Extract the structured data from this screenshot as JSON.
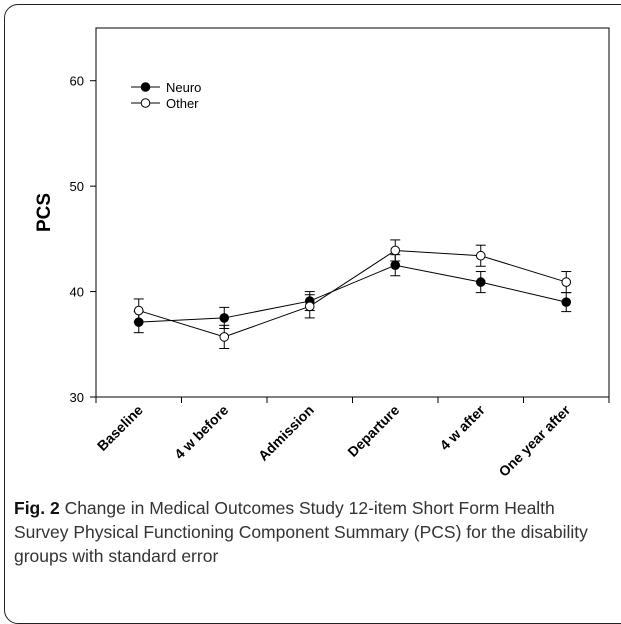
{
  "chart_data": {
    "type": "line",
    "categories": [
      "Baseline",
      "4 w before",
      "Admission",
      "Departure",
      "4 w after",
      "One year after"
    ],
    "series": [
      {
        "name": "Neuro",
        "marker": "filled-circle",
        "values": [
          37.1,
          37.5,
          39.1,
          42.5,
          40.9,
          39.0
        ],
        "error": [
          1.0,
          1.0,
          0.9,
          1.0,
          1.0,
          0.9
        ]
      },
      {
        "name": "Other",
        "marker": "open-circle",
        "values": [
          38.2,
          35.7,
          38.6,
          43.9,
          43.4,
          40.9
        ],
        "error": [
          1.1,
          1.1,
          1.1,
          1.0,
          1.0,
          1.0
        ]
      }
    ],
    "ylabel": "PCS",
    "xlabel": "",
    "ylim": [
      30,
      65
    ],
    "yticks": [
      30,
      40,
      50,
      60
    ],
    "legend_position": "top-left",
    "grid": false,
    "color": "#000000"
  },
  "caption": {
    "label": "Fig. 2",
    "text": " Change in Medical Outcomes Study 12-item Short Form Health Survey Physical Functioning Component Summary (PCS) for the disability groups with standard error"
  }
}
